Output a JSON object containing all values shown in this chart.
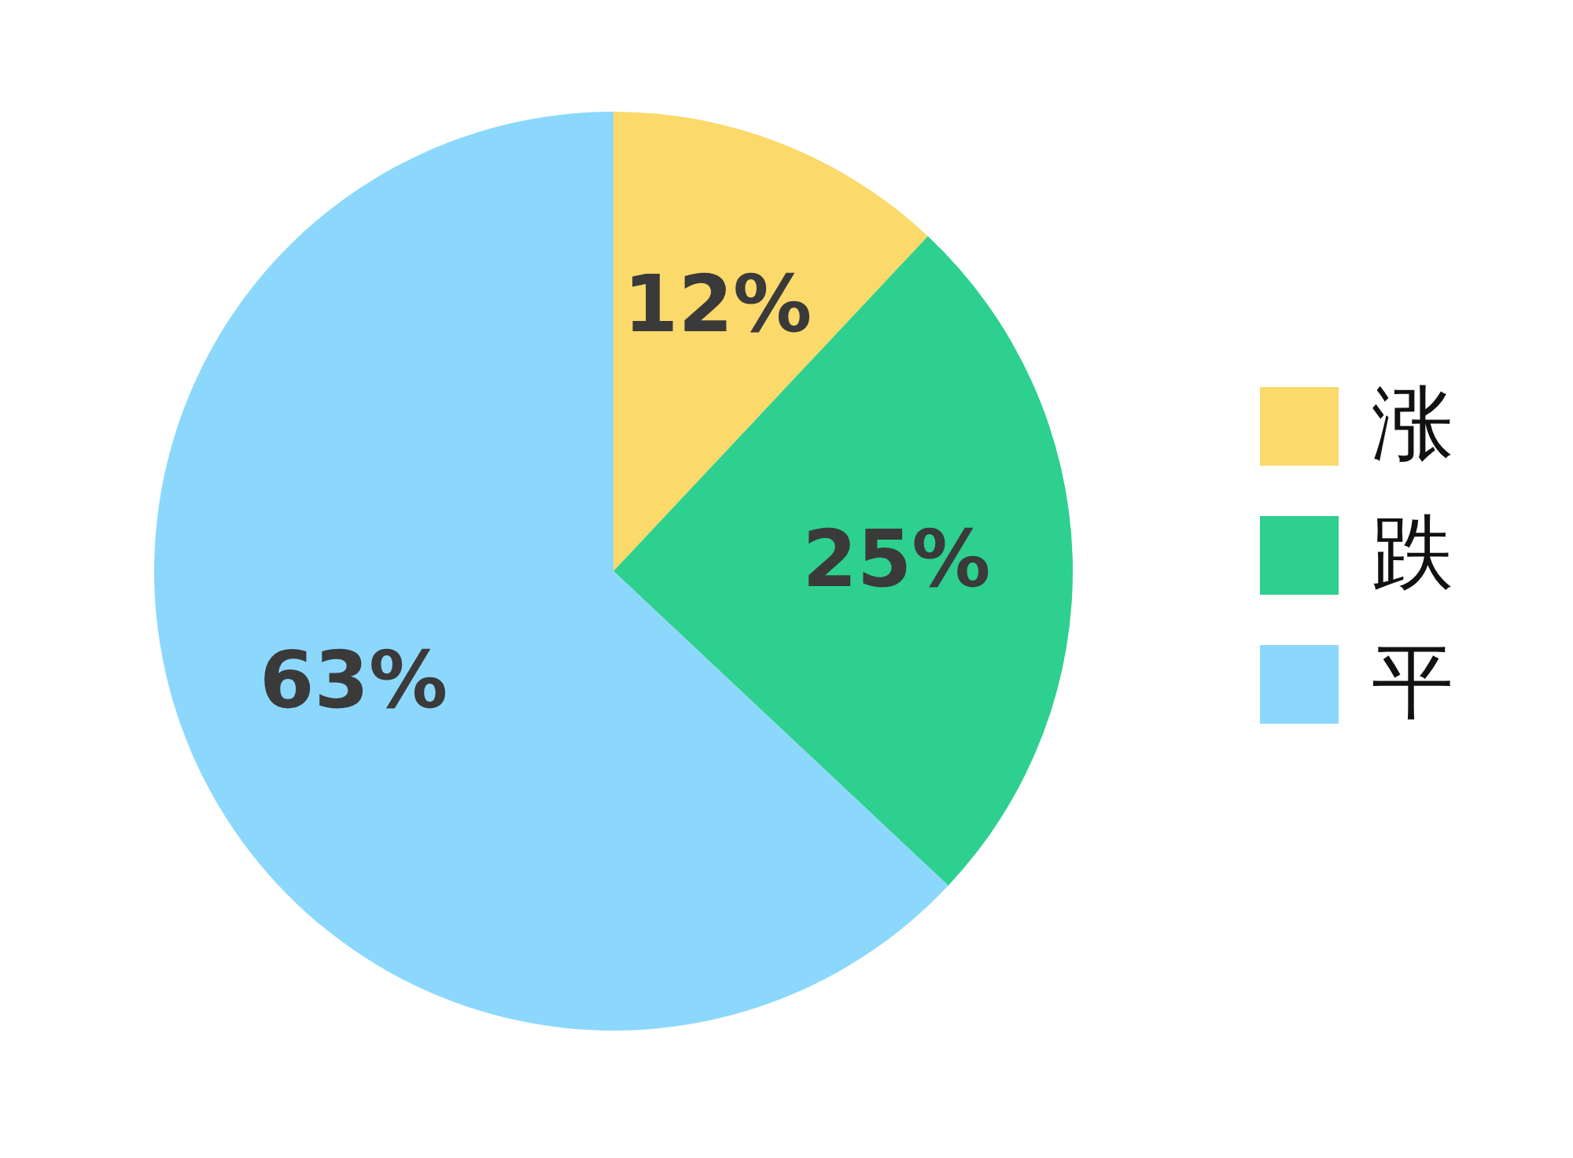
{
  "chart_data": {
    "type": "pie",
    "categories": [
      "涨",
      "跌",
      "平"
    ],
    "values": [
      12,
      25,
      63
    ],
    "colors": [
      "#fbd96a",
      "#2dd08e",
      "#8cd8fc"
    ],
    "value_labels": [
      "12%",
      "25%",
      "63%"
    ],
    "legend": "right"
  }
}
